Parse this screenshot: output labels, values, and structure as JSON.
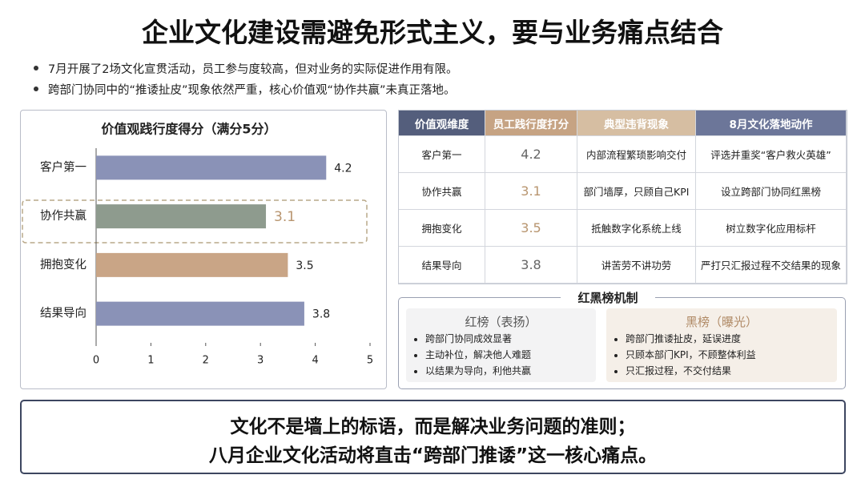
{
  "header": {
    "title": "企业文化建设需避免形式主义，要与业务痛点结合"
  },
  "bullets": [
    "7月开展了2场文化宣贯活动，员工参与度较高，但对业务的实际促进作用有限。",
    "跨部门协同中的“推诿扯皮”现象依然严重，核心价值观“协作共赢”未真正落地。"
  ],
  "chart_data": {
    "type": "bar",
    "orientation": "horizontal",
    "title": "价值观践行度得分（满分5分）",
    "categories": [
      "客户第一",
      "协作共赢",
      "拥抱变化",
      "结果导向"
    ],
    "values": [
      4.2,
      3.1,
      3.5,
      3.8
    ],
    "colors": [
      "#8a92b7",
      "#8e9b8e",
      "#c9a586",
      "#8a92b7"
    ],
    "xlim": [
      0,
      5
    ],
    "xticks": [
      0,
      1,
      2,
      3,
      4,
      5
    ],
    "grid": false
  },
  "table": {
    "headers": [
      "价值观维度",
      "员工践行度打分",
      "典型违背现象",
      "8月文化落地动作"
    ],
    "rows": [
      [
        "内部流程繁琐影响交付",
        "评选并重奖“客户救火英雄”"
      ],
      [
        "部门墙厚，只顾自己KPI",
        "设立跨部门协同红黑榜"
      ],
      [
        "抵触数字化系统上线",
        "树立数字化应用标杆"
      ],
      [
        "讲苦劳不讲功劳",
        "严打只汇报过程不交结果的现象"
      ]
    ]
  },
  "mechanism": {
    "title": "红黑榜机制",
    "red": {
      "title": "红榜（表扬）",
      "items": [
        "跨部门协同成效显著",
        "主动补位，解决他人难题",
        "以结果为导向，利他共赢"
      ]
    },
    "black": {
      "title": "黑榜（曝光）",
      "items": [
        "跨部门推诿扯皮，延误进度",
        "只顾本部门KPI，不顾整体利益",
        "只汇报过程，不交付结果"
      ]
    }
  },
  "footer": [
    "文化不是墙上的标语，而是解决业务问题的准则；",
    "八月企业文化活动将直击“跨部门推诿”这一核心痛点。"
  ]
}
